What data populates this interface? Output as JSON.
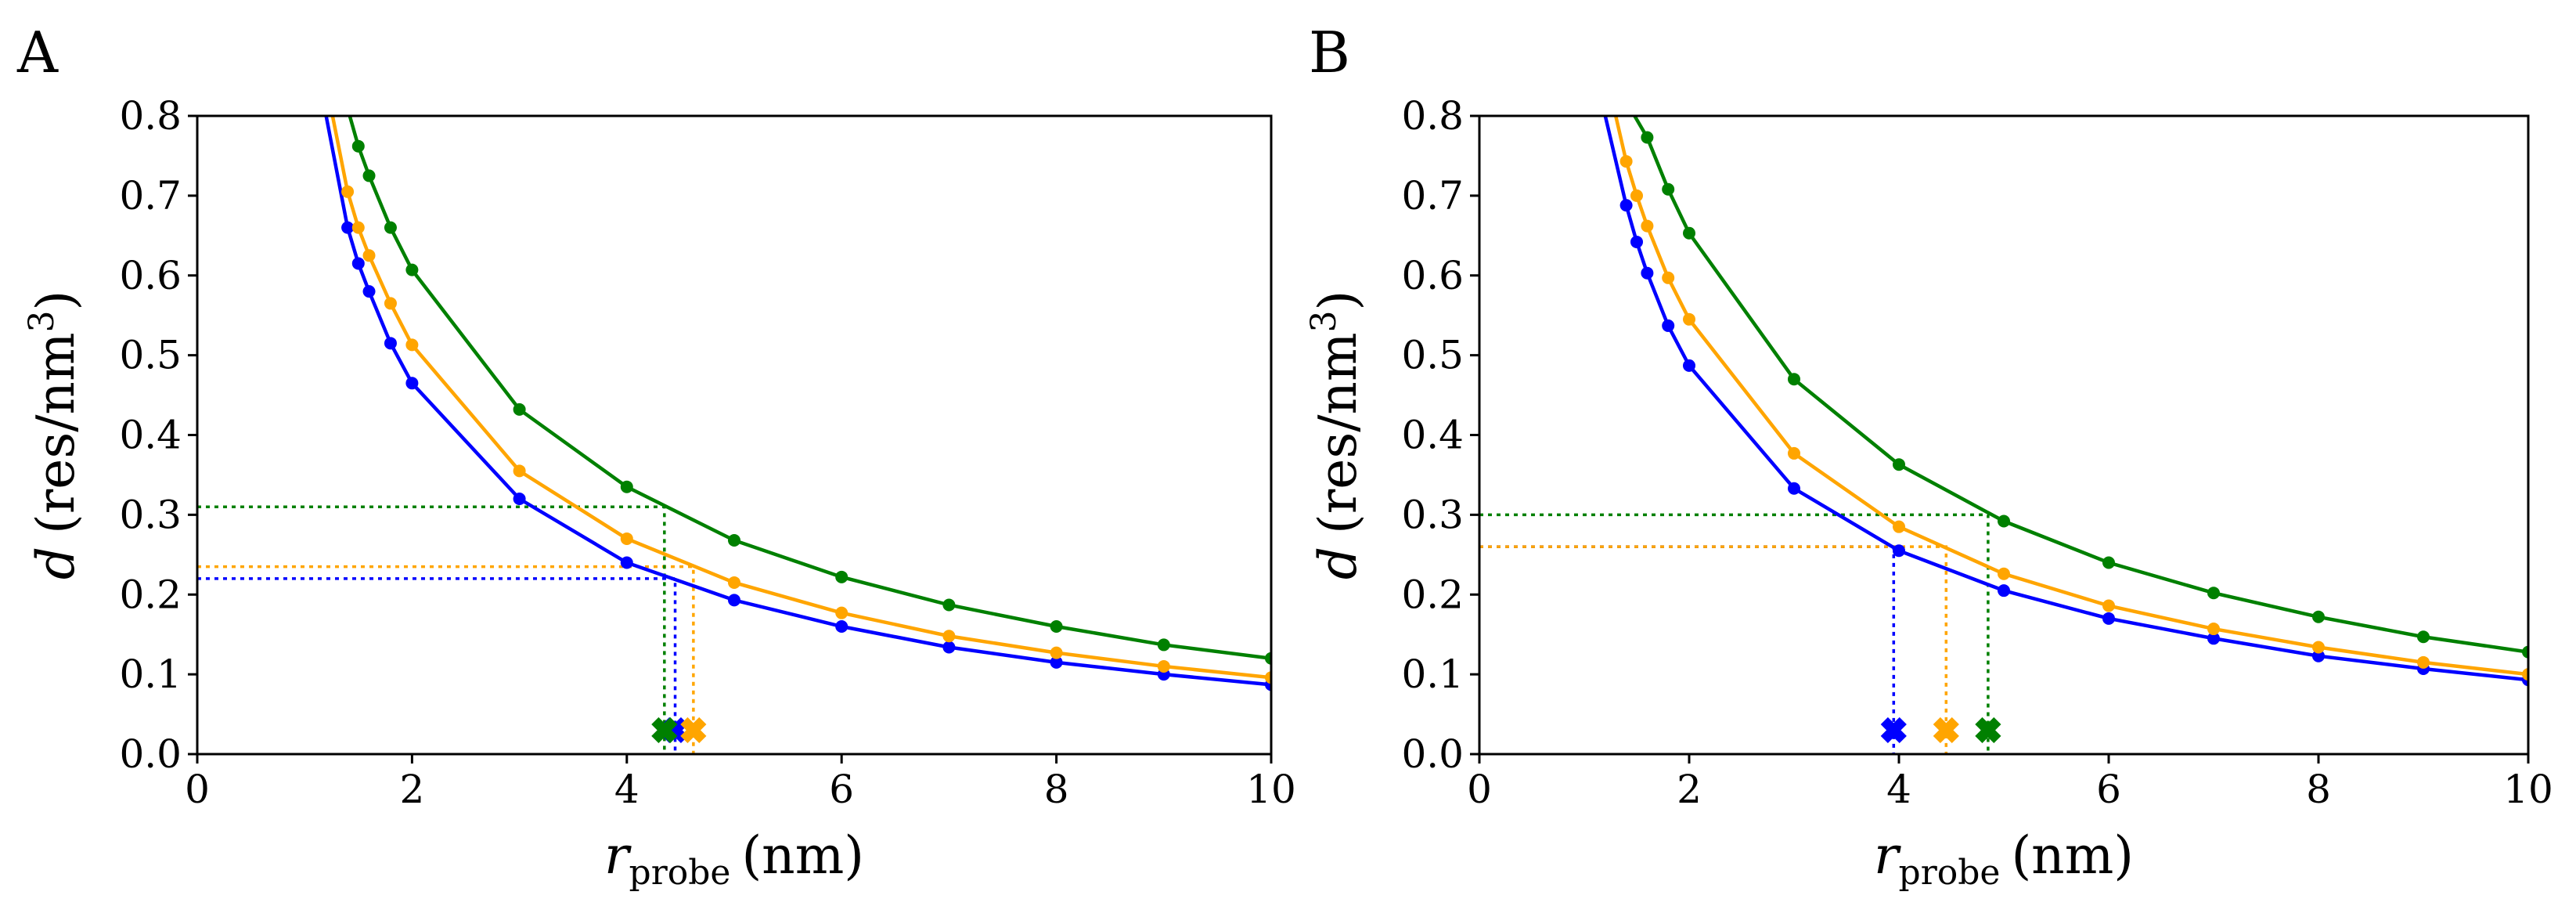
{
  "chart_data": [
    {
      "type": "line",
      "panel_label": "A",
      "xlabel_main": "r",
      "xlabel_sub": "probe",
      "xlabel_units": "(nm)",
      "ylabel_main": "d",
      "ylabel_units": "(res/nm",
      "ylabel_sup": "3",
      "ylabel_close": ")",
      "xlim": [
        0,
        10
      ],
      "ylim": [
        0,
        0.8
      ],
      "xticks": [
        "0",
        "2",
        "4",
        "6",
        "8",
        "10"
      ],
      "yticks": [
        "0.0",
        "0.1",
        "0.2",
        "0.3",
        "0.4",
        "0.5",
        "0.6",
        "0.7",
        "0.8"
      ],
      "grid": false,
      "series": [
        {
          "name": "blue",
          "color": "#0000ff",
          "x": [
            1.4,
            1.5,
            1.6,
            1.8,
            2.0,
            3.0,
            4.0,
            5.0,
            6.0,
            7.0,
            8.0,
            9.0,
            10.0
          ],
          "y": [
            0.66,
            0.615,
            0.58,
            0.515,
            0.465,
            0.32,
            0.24,
            0.193,
            0.16,
            0.134,
            0.115,
            0.1,
            0.087
          ],
          "curve_start": [
            1.2,
            0.8
          ],
          "threshold": 0.22,
          "marker_x": 4.45
        },
        {
          "name": "orange",
          "color": "#ffa500",
          "x": [
            1.4,
            1.5,
            1.6,
            1.8,
            2.0,
            3.0,
            4.0,
            5.0,
            6.0,
            7.0,
            8.0,
            9.0,
            10.0
          ],
          "y": [
            0.705,
            0.66,
            0.625,
            0.565,
            0.513,
            0.355,
            0.27,
            0.215,
            0.177,
            0.148,
            0.127,
            0.11,
            0.096
          ],
          "curve_start": [
            1.26,
            0.8
          ],
          "threshold": 0.235,
          "marker_x": 4.62
        },
        {
          "name": "green",
          "color": "#008000",
          "x": [
            1.5,
            1.6,
            1.8,
            2.0,
            3.0,
            4.0,
            5.0,
            6.0,
            7.0,
            8.0,
            9.0,
            10.0
          ],
          "y": [
            0.762,
            0.725,
            0.66,
            0.607,
            0.432,
            0.335,
            0.268,
            0.222,
            0.187,
            0.16,
            0.137,
            0.12
          ],
          "curve_start": [
            1.42,
            0.8
          ],
          "threshold": 0.31,
          "marker_x": 4.35
        }
      ]
    },
    {
      "type": "line",
      "panel_label": "B",
      "xlabel_main": "r",
      "xlabel_sub": "probe",
      "xlabel_units": "(nm)",
      "ylabel_main": "d",
      "ylabel_units": "(res/nm",
      "ylabel_sup": "3",
      "ylabel_close": ")",
      "xlim": [
        0,
        10
      ],
      "ylim": [
        0,
        0.8
      ],
      "xticks": [
        "0",
        "2",
        "4",
        "6",
        "8",
        "10"
      ],
      "yticks": [
        "0.0",
        "0.1",
        "0.2",
        "0.3",
        "0.4",
        "0.5",
        "0.6",
        "0.7",
        "0.8"
      ],
      "grid": false,
      "series": [
        {
          "name": "blue",
          "color": "#0000ff",
          "x": [
            1.4,
            1.5,
            1.6,
            1.8,
            2.0,
            3.0,
            4.0,
            5.0,
            6.0,
            7.0,
            8.0,
            9.0,
            10.0
          ],
          "y": [
            0.688,
            0.642,
            0.603,
            0.537,
            0.487,
            0.333,
            0.255,
            0.205,
            0.17,
            0.145,
            0.123,
            0.107,
            0.093
          ],
          "curve_start": [
            1.2,
            0.8
          ],
          "threshold": 0.26,
          "marker_x": 3.95
        },
        {
          "name": "orange",
          "color": "#ffa500",
          "x": [
            1.4,
            1.5,
            1.6,
            1.8,
            2.0,
            3.0,
            4.0,
            5.0,
            6.0,
            7.0,
            8.0,
            9.0,
            10.0
          ],
          "y": [
            0.743,
            0.7,
            0.662,
            0.597,
            0.545,
            0.377,
            0.285,
            0.226,
            0.186,
            0.157,
            0.134,
            0.115,
            0.1
          ],
          "curve_start": [
            1.3,
            0.8
          ],
          "threshold": 0.26,
          "marker_x": 4.45
        },
        {
          "name": "green",
          "color": "#008000",
          "x": [
            1.6,
            1.8,
            2.0,
            3.0,
            4.0,
            5.0,
            6.0,
            7.0,
            8.0,
            9.0,
            10.0
          ],
          "y": [
            0.773,
            0.708,
            0.653,
            0.47,
            0.363,
            0.292,
            0.24,
            0.202,
            0.172,
            0.147,
            0.128
          ],
          "curve_start": [
            1.48,
            0.8
          ],
          "threshold": 0.3,
          "marker_x": 4.85
        }
      ]
    }
  ]
}
